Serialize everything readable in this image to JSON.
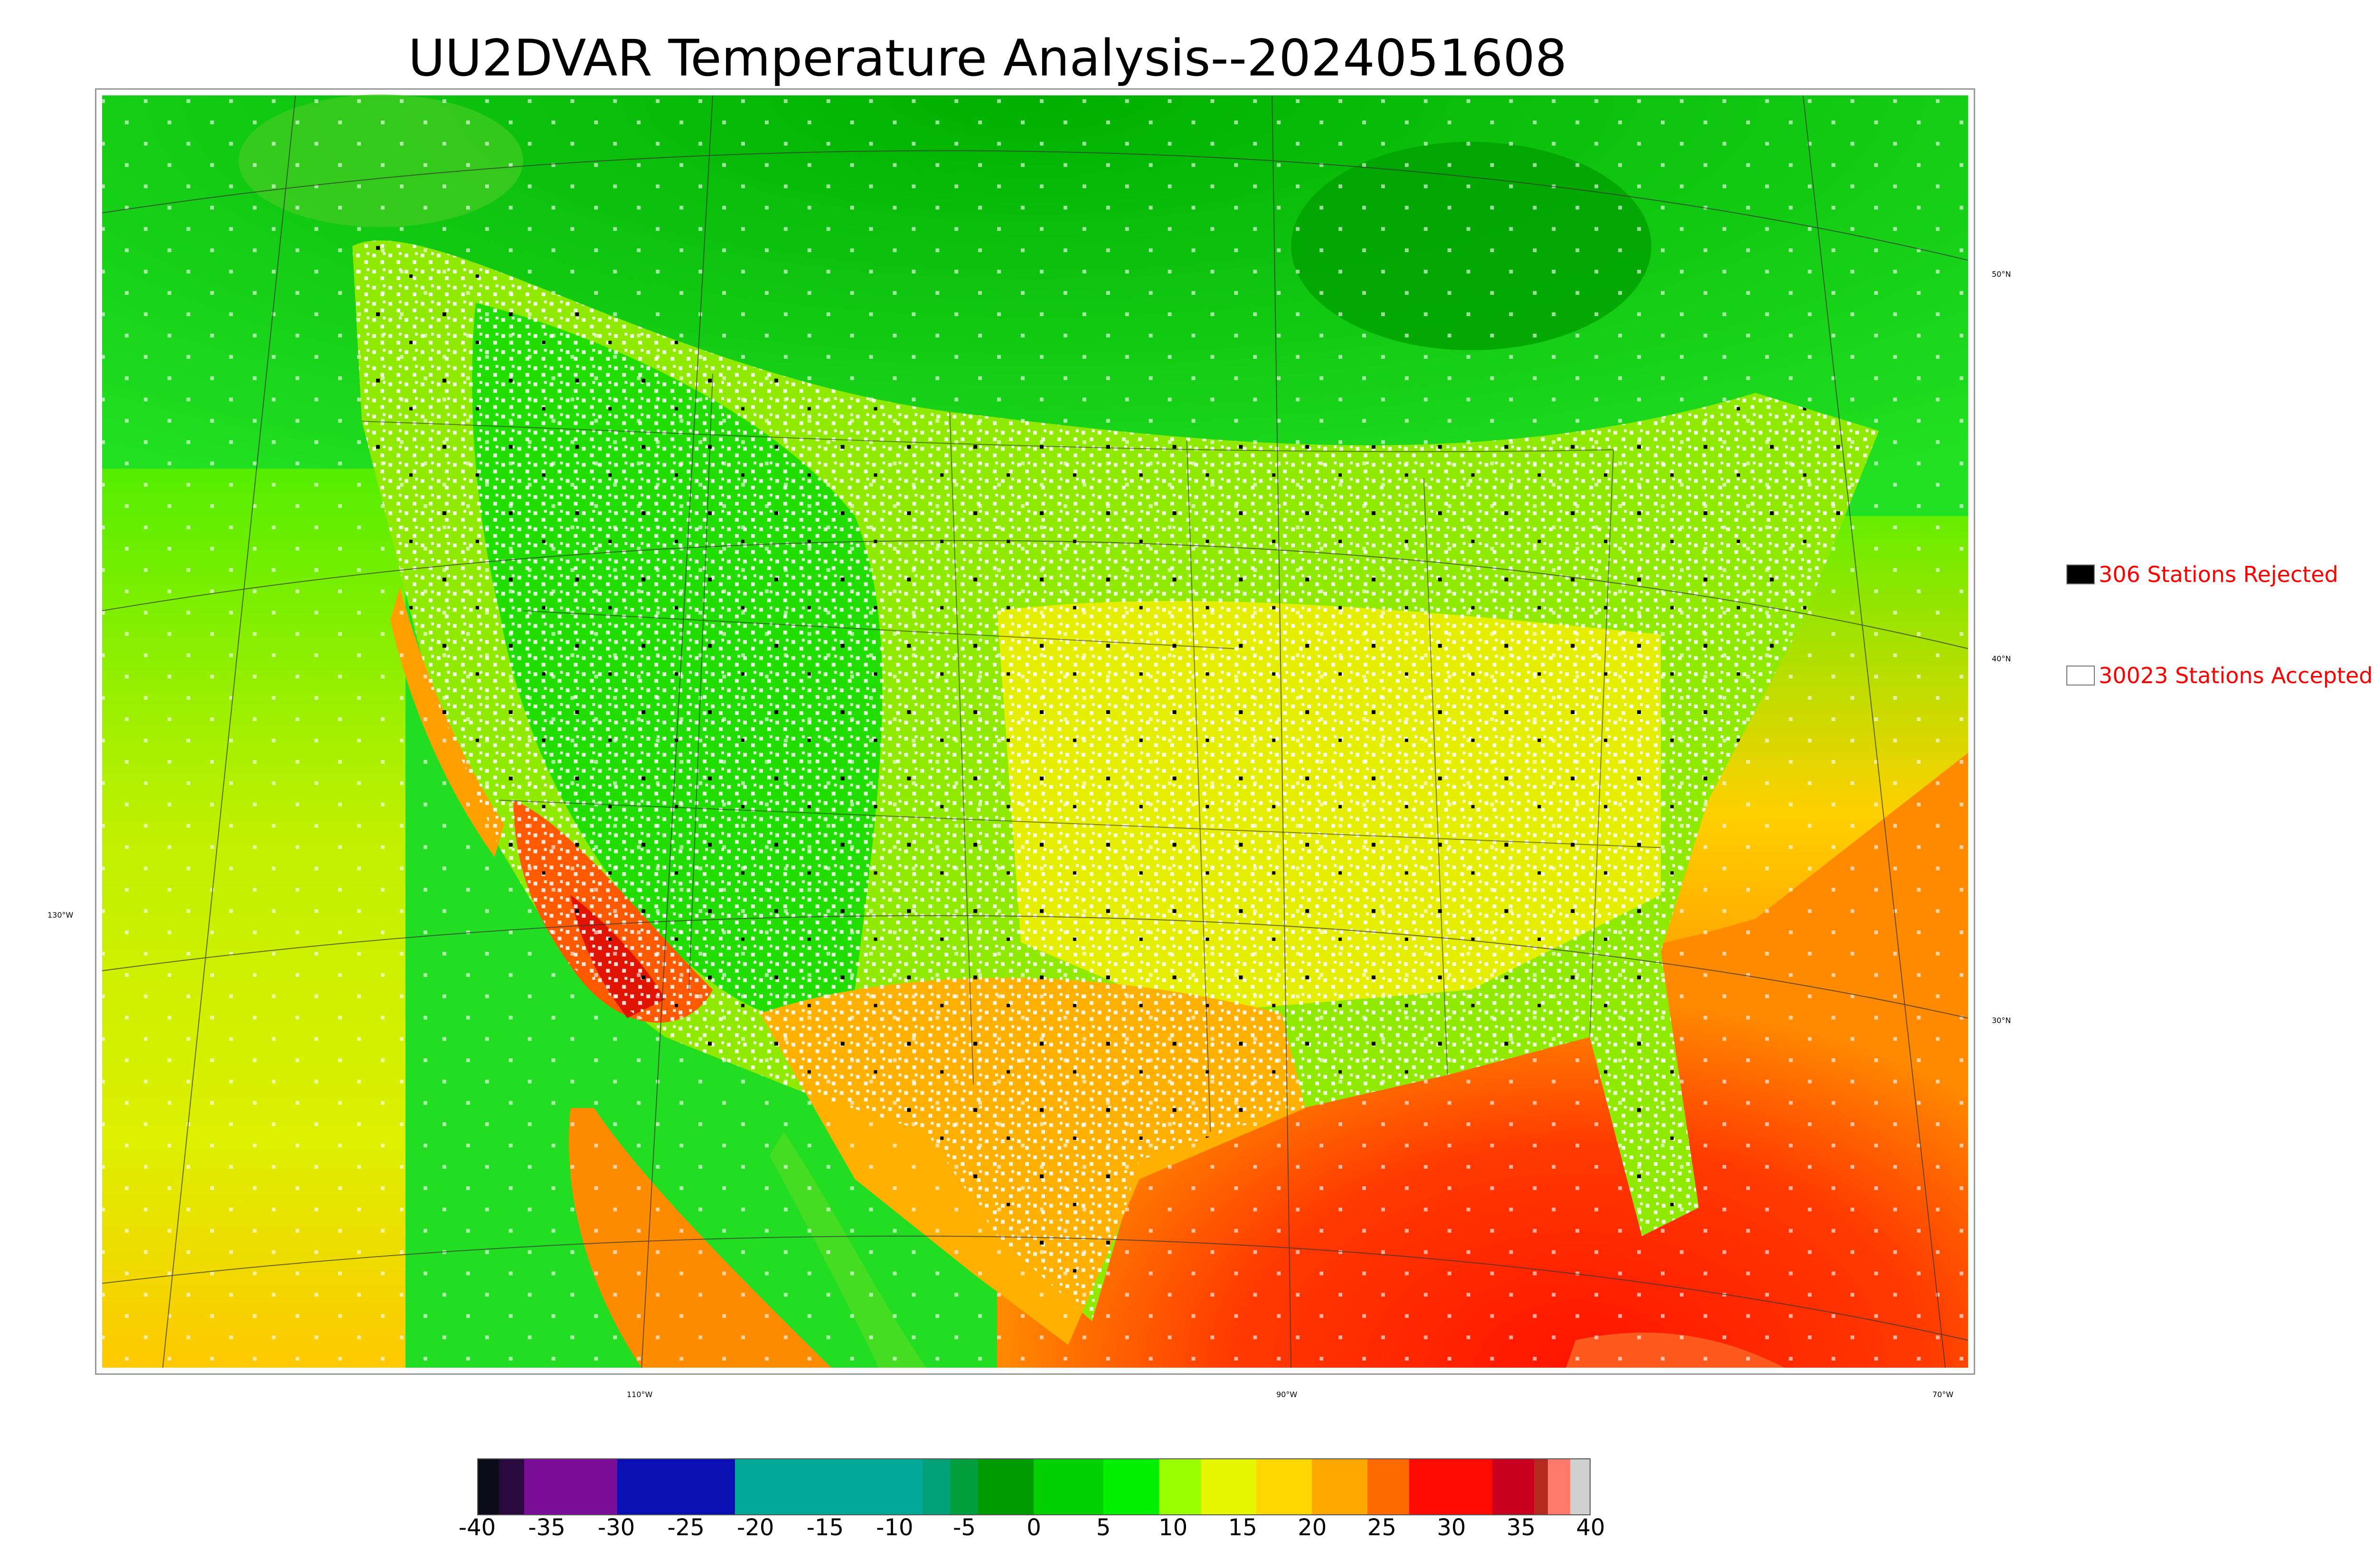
{
  "title": "UU2DVAR Temperature Analysis--2024051608",
  "map": {
    "lat_labels": [
      "50°N",
      "40°N",
      "30°N"
    ],
    "lon_labels": [
      "130°W",
      "110°W",
      "90°W",
      "70°W"
    ]
  },
  "legend": {
    "rejected": {
      "label": "306 Stations Rejected",
      "count": 306,
      "color": "#000000"
    },
    "accepted": {
      "label": "30023 Stations Accepted",
      "count": 30023,
      "color": "#ffffff"
    }
  },
  "colorbar": {
    "min": -40,
    "max": 40,
    "ticks": [
      "-40",
      "-35",
      "-30",
      "-25",
      "-20",
      "-15",
      "-10",
      "-5",
      "0",
      "5",
      "10",
      "15",
      "20",
      "25",
      "30",
      "35",
      "40"
    ],
    "segments": [
      {
        "from": -40,
        "to": -38.5,
        "color": "#0b0b1a"
      },
      {
        "from": -38.5,
        "to": -36.7,
        "color": "#2a0a3e"
      },
      {
        "from": -36.7,
        "to": -30,
        "color": "#7a0e96"
      },
      {
        "from": -30,
        "to": -21.5,
        "color": "#0a10b4"
      },
      {
        "from": -21.5,
        "to": -8,
        "color": "#00a99a"
      },
      {
        "from": -8,
        "to": -6,
        "color": "#00a078"
      },
      {
        "from": -6,
        "to": -4,
        "color": "#009e3c"
      },
      {
        "from": -4,
        "to": 0,
        "color": "#009a00"
      },
      {
        "from": 0,
        "to": 5,
        "color": "#00d000"
      },
      {
        "from": 5,
        "to": 9,
        "color": "#00f000"
      },
      {
        "from": 9,
        "to": 12,
        "color": "#9aff00"
      },
      {
        "from": 12,
        "to": 16,
        "color": "#e6f500"
      },
      {
        "from": 16,
        "to": 20,
        "color": "#ffd700"
      },
      {
        "from": 20,
        "to": 24,
        "color": "#ffa800"
      },
      {
        "from": 24,
        "to": 27,
        "color": "#ff6a00"
      },
      {
        "from": 27,
        "to": 33,
        "color": "#ff0a00"
      },
      {
        "from": 33,
        "to": 36,
        "color": "#c8001e"
      },
      {
        "from": 36,
        "to": 37,
        "color": "#b42a1e"
      },
      {
        "from": 37,
        "to": 38.6,
        "color": "#ff7a6a"
      },
      {
        "from": 38.6,
        "to": 40,
        "color": "#cfcfcf"
      }
    ]
  }
}
